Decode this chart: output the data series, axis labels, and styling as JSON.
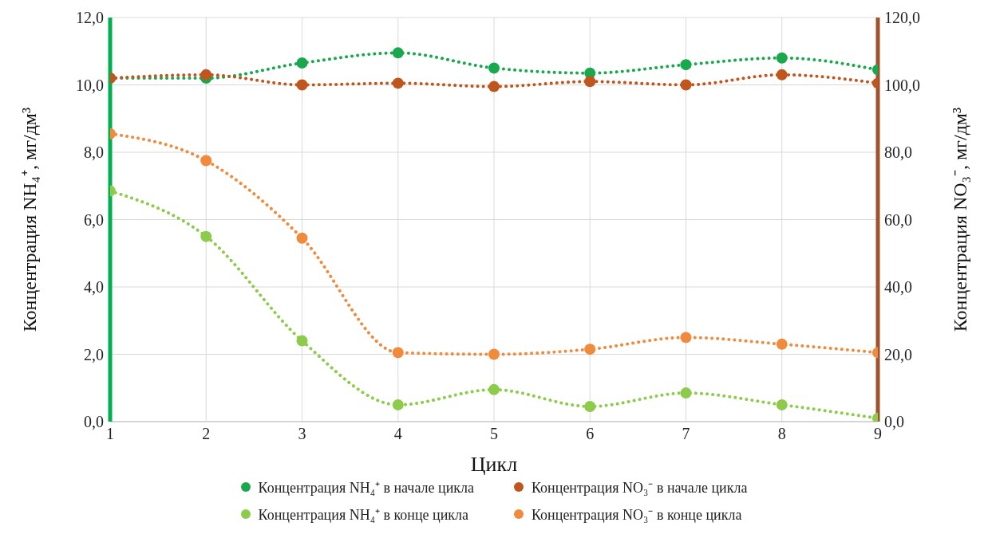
{
  "chart_data": {
    "type": "line",
    "xlabel": "Цикл",
    "ylabel": "Концентрация NH₄⁺, мг/дм³",
    "y2label": "Концентрация NO₃⁻, мг/дм³",
    "x": [
      1,
      2,
      3,
      4,
      5,
      6,
      7,
      8,
      9
    ],
    "series": [
      {
        "name": "Концентрация NH₄⁺ в начале цикла",
        "color": "#1aa84f",
        "values": [
          10.2,
          10.2,
          10.65,
          10.95,
          10.5,
          10.35,
          10.6,
          10.8,
          10.45
        ]
      },
      {
        "name": "Концентрация NH₄⁺ в конце цикла",
        "color": "#8ccc4a",
        "values": [
          6.85,
          5.5,
          2.4,
          0.5,
          0.95,
          0.45,
          0.85,
          0.5,
          0.1
        ]
      },
      {
        "name": "Концентрация NO₃⁻ в начале цикла",
        "color": "#c0561e",
        "axis": "y2",
        "values": [
          102,
          103,
          100,
          100.5,
          99.5,
          101,
          100,
          103,
          100.5
        ]
      },
      {
        "name": "Концентрация NO₃⁻ в конце цикла",
        "color": "#f08a3c",
        "axis": "y2",
        "values": [
          85.5,
          77.5,
          54.5,
          20.5,
          20,
          21.5,
          25,
          23,
          20.5
        ]
      }
    ],
    "xlim": [
      1,
      9
    ],
    "xticks": [
      1,
      2,
      3,
      4,
      5,
      6,
      7,
      8,
      9
    ],
    "ylim": [
      0,
      12
    ],
    "yticks": [
      {
        "value": 0,
        "label": "0,0"
      },
      {
        "value": 2,
        "label": "2,0"
      },
      {
        "value": 4,
        "label": "4,0"
      },
      {
        "value": 6,
        "label": "6,0"
      },
      {
        "value": 8,
        "label": "8,0"
      },
      {
        "value": 10,
        "label": "10,0"
      },
      {
        "value": 12,
        "label": "12,0"
      }
    ],
    "y2lim": [
      0,
      120
    ],
    "y2ticks": [
      {
        "value": 0,
        "label": "0,0"
      },
      {
        "value": 20,
        "label": "20,0"
      },
      {
        "value": 40,
        "label": "40,0"
      },
      {
        "value": 60,
        "label": "60,0"
      },
      {
        "value": 80,
        "label": "80,0"
      },
      {
        "value": 100,
        "label": "100,0"
      },
      {
        "value": 120,
        "label": "120,0"
      }
    ],
    "grid": true,
    "legend": "bottom",
    "marker": "circle",
    "line_style": "dotted"
  }
}
